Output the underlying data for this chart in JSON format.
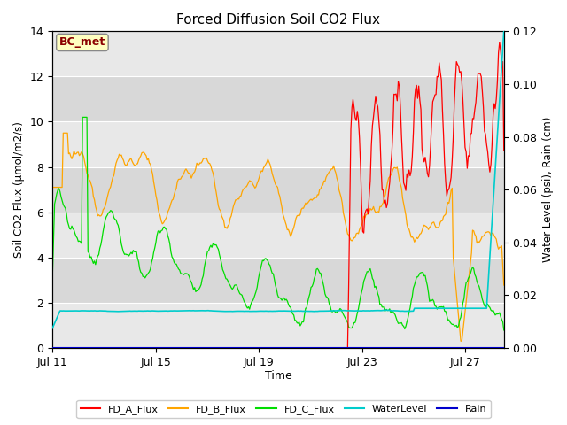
{
  "title": "Forced Diffusion Soil CO2 Flux",
  "ylabel_left": "Soil CO2 Flux (μmol/m2/s)",
  "ylabel_right": "Water Level (psi), Rain (cm)",
  "xlabel": "Time",
  "xlim_days": [
    0,
    17.5
  ],
  "ylim_left": [
    0,
    14
  ],
  "ylim_right": [
    0,
    0.12
  ],
  "x_ticks_labels": [
    "Jul 11",
    "Jul 15",
    "Jul 19",
    "Jul 23",
    "Jul 27"
  ],
  "x_ticks_pos": [
    0,
    4,
    8,
    12,
    16
  ],
  "y_ticks_left": [
    0,
    2,
    4,
    6,
    8,
    10,
    12,
    14
  ],
  "y_ticks_right": [
    0.0,
    0.02,
    0.04,
    0.06,
    0.08,
    0.1,
    0.12
  ],
  "annotation_text": "BC_met",
  "annotation_color": "#8B0000",
  "annotation_bg": "#FFFFC0",
  "annotation_edge": "#888888",
  "background_color": "#e8e8e8",
  "band_colors": [
    "#e8e8e8",
    "#d8d8d8"
  ],
  "colors": {
    "FD_A_Flux": "#FF0000",
    "FD_B_Flux": "#FFA500",
    "FD_C_Flux": "#00DD00",
    "WaterLevel": "#00CCCC",
    "Rain": "#0000CC"
  },
  "legend_entries": [
    "FD_A_Flux",
    "FD_B_Flux",
    "FD_C_Flux",
    "WaterLevel",
    "Rain"
  ]
}
